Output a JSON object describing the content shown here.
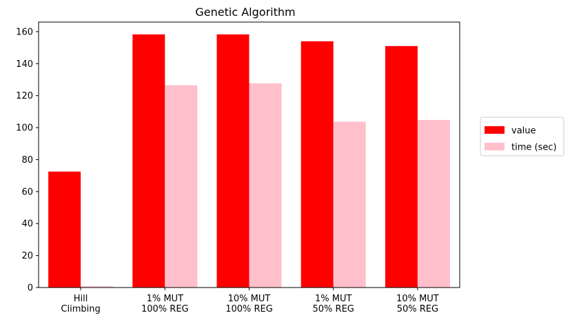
{
  "chart_data": {
    "type": "bar",
    "title": "Genetic Algorithm",
    "xlabel": "",
    "ylabel": "",
    "categories": [
      [
        "Hill",
        "Climbing"
      ],
      [
        "1% MUT",
        "100% REG"
      ],
      [
        "10% MUT",
        "100% REG"
      ],
      [
        "1% MUT",
        "50% REG"
      ],
      [
        "10% MUT",
        "50% REG"
      ]
    ],
    "series": [
      {
        "name": "value",
        "color": "#ff0000",
        "values": [
          72.5,
          158.3,
          158.3,
          154.0,
          151.0
        ]
      },
      {
        "name": "time (sec)",
        "color": "#ffc0cb",
        "values": [
          0.8,
          126.5,
          127.7,
          103.7,
          104.8
        ]
      }
    ],
    "ylim": [
      0,
      166
    ],
    "yticks": [
      0,
      20,
      40,
      60,
      80,
      100,
      120,
      140,
      160
    ],
    "grid": false,
    "legend_position": "right"
  }
}
